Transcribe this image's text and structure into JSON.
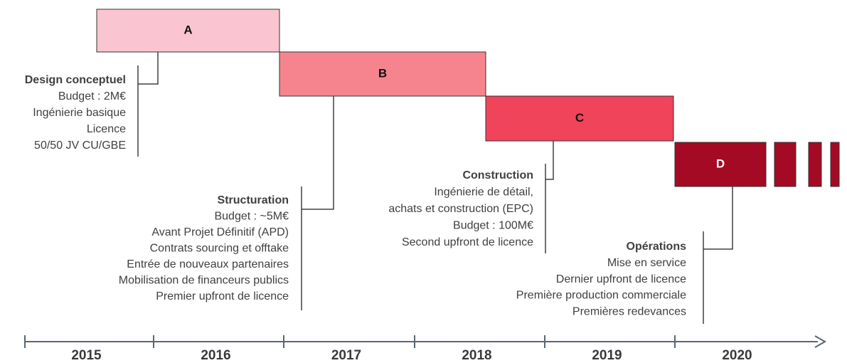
{
  "phases": [
    {
      "label": "A",
      "description": {
        "title": "Design conceptuel",
        "lines": [
          "Budget : 2M€",
          "Ingénierie basique",
          "Licence",
          "50/50 JV CU/GBE"
        ]
      }
    },
    {
      "label": "B",
      "description": {
        "title": "Structuration",
        "lines": [
          "Budget : ~5M€",
          "Avant Projet Définitif (APD)",
          "Contrats sourcing et offtake",
          "Entrée de nouveaux partenaires",
          "Mobilisation de financeurs publics",
          "Premier upfront de licence"
        ]
      }
    },
    {
      "label": "C",
      "description": {
        "title": "Construction",
        "lines": [
          "Ingénierie de détail,",
          "achats et construction (EPC)",
          "Budget : 100M€",
          "Second upfront de licence"
        ]
      }
    },
    {
      "label": "D",
      "description": {
        "title": "Opérations",
        "lines": [
          "Mise en service",
          "Dernier upfront de licence",
          "Première production commerciale",
          "Premières redevances"
        ]
      }
    }
  ],
  "axis": {
    "years": [
      "2015",
      "2016",
      "2017",
      "2018",
      "2019",
      "2020"
    ]
  }
}
